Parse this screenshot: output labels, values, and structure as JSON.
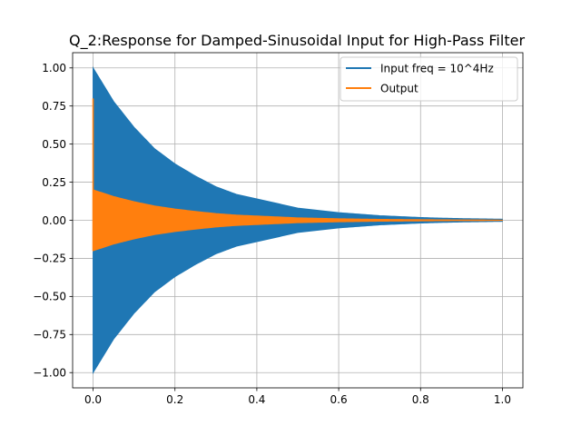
{
  "chart_data": {
    "type": "area",
    "title": "Q_2:Response for Damped-Sinusoidal Input for High-Pass Filter",
    "xlabel": "",
    "ylabel": "",
    "xlim": [
      -0.05,
      1.05
    ],
    "ylim": [
      -1.1,
      1.1
    ],
    "xticks": [
      0.0,
      0.2,
      0.4,
      0.6,
      0.8,
      1.0
    ],
    "xtick_labels": [
      "0.0",
      "0.2",
      "0.4",
      "0.6",
      "0.8",
      "1.0"
    ],
    "yticks": [
      1.0,
      0.75,
      0.5,
      0.25,
      0.0,
      -0.25,
      -0.5,
      -0.75,
      -1.0
    ],
    "ytick_labels": [
      "1.00",
      "0.75",
      "0.50",
      "0.25",
      "0.00",
      "−0.25",
      "−0.50",
      "−0.75",
      "−1.00"
    ],
    "grid": true,
    "legend_position": "top-right",
    "series": [
      {
        "name": "Input freq = 10^4Hz",
        "color": "#1f77b4",
        "envelope": {
          "x": [
            0,
            0.05,
            0.1,
            0.15,
            0.2,
            0.25,
            0.3,
            0.35,
            0.4,
            0.45,
            0.5,
            0.55,
            0.6,
            0.65,
            0.7,
            0.75,
            0.8,
            0.85,
            0.9,
            0.95,
            1.0
          ],
          "upper": [
            1.0,
            0.78,
            0.61,
            0.47,
            0.37,
            0.29,
            0.22,
            0.17,
            0.14,
            0.11,
            0.08,
            0.065,
            0.05,
            0.04,
            0.03,
            0.024,
            0.018,
            0.014,
            0.011,
            0.009,
            0.007
          ]
        }
      },
      {
        "name": "Output",
        "color": "#ff7f0e",
        "envelope": {
          "x": [
            0,
            0.05,
            0.1,
            0.15,
            0.2,
            0.25,
            0.3,
            0.35,
            0.4,
            0.45,
            0.5,
            0.55,
            0.6,
            0.65,
            0.7,
            0.75,
            0.8,
            0.85,
            0.9,
            0.95,
            1.0
          ],
          "upper": [
            0.2,
            0.156,
            0.122,
            0.094,
            0.074,
            0.058,
            0.044,
            0.034,
            0.028,
            0.022,
            0.016,
            0.013,
            0.01,
            0.008,
            0.006,
            0.005,
            0.004,
            0.003,
            0.002,
            0.002,
            0.001
          ]
        },
        "initial_spike": {
          "x": 0,
          "y": 0.8
        }
      }
    ]
  }
}
